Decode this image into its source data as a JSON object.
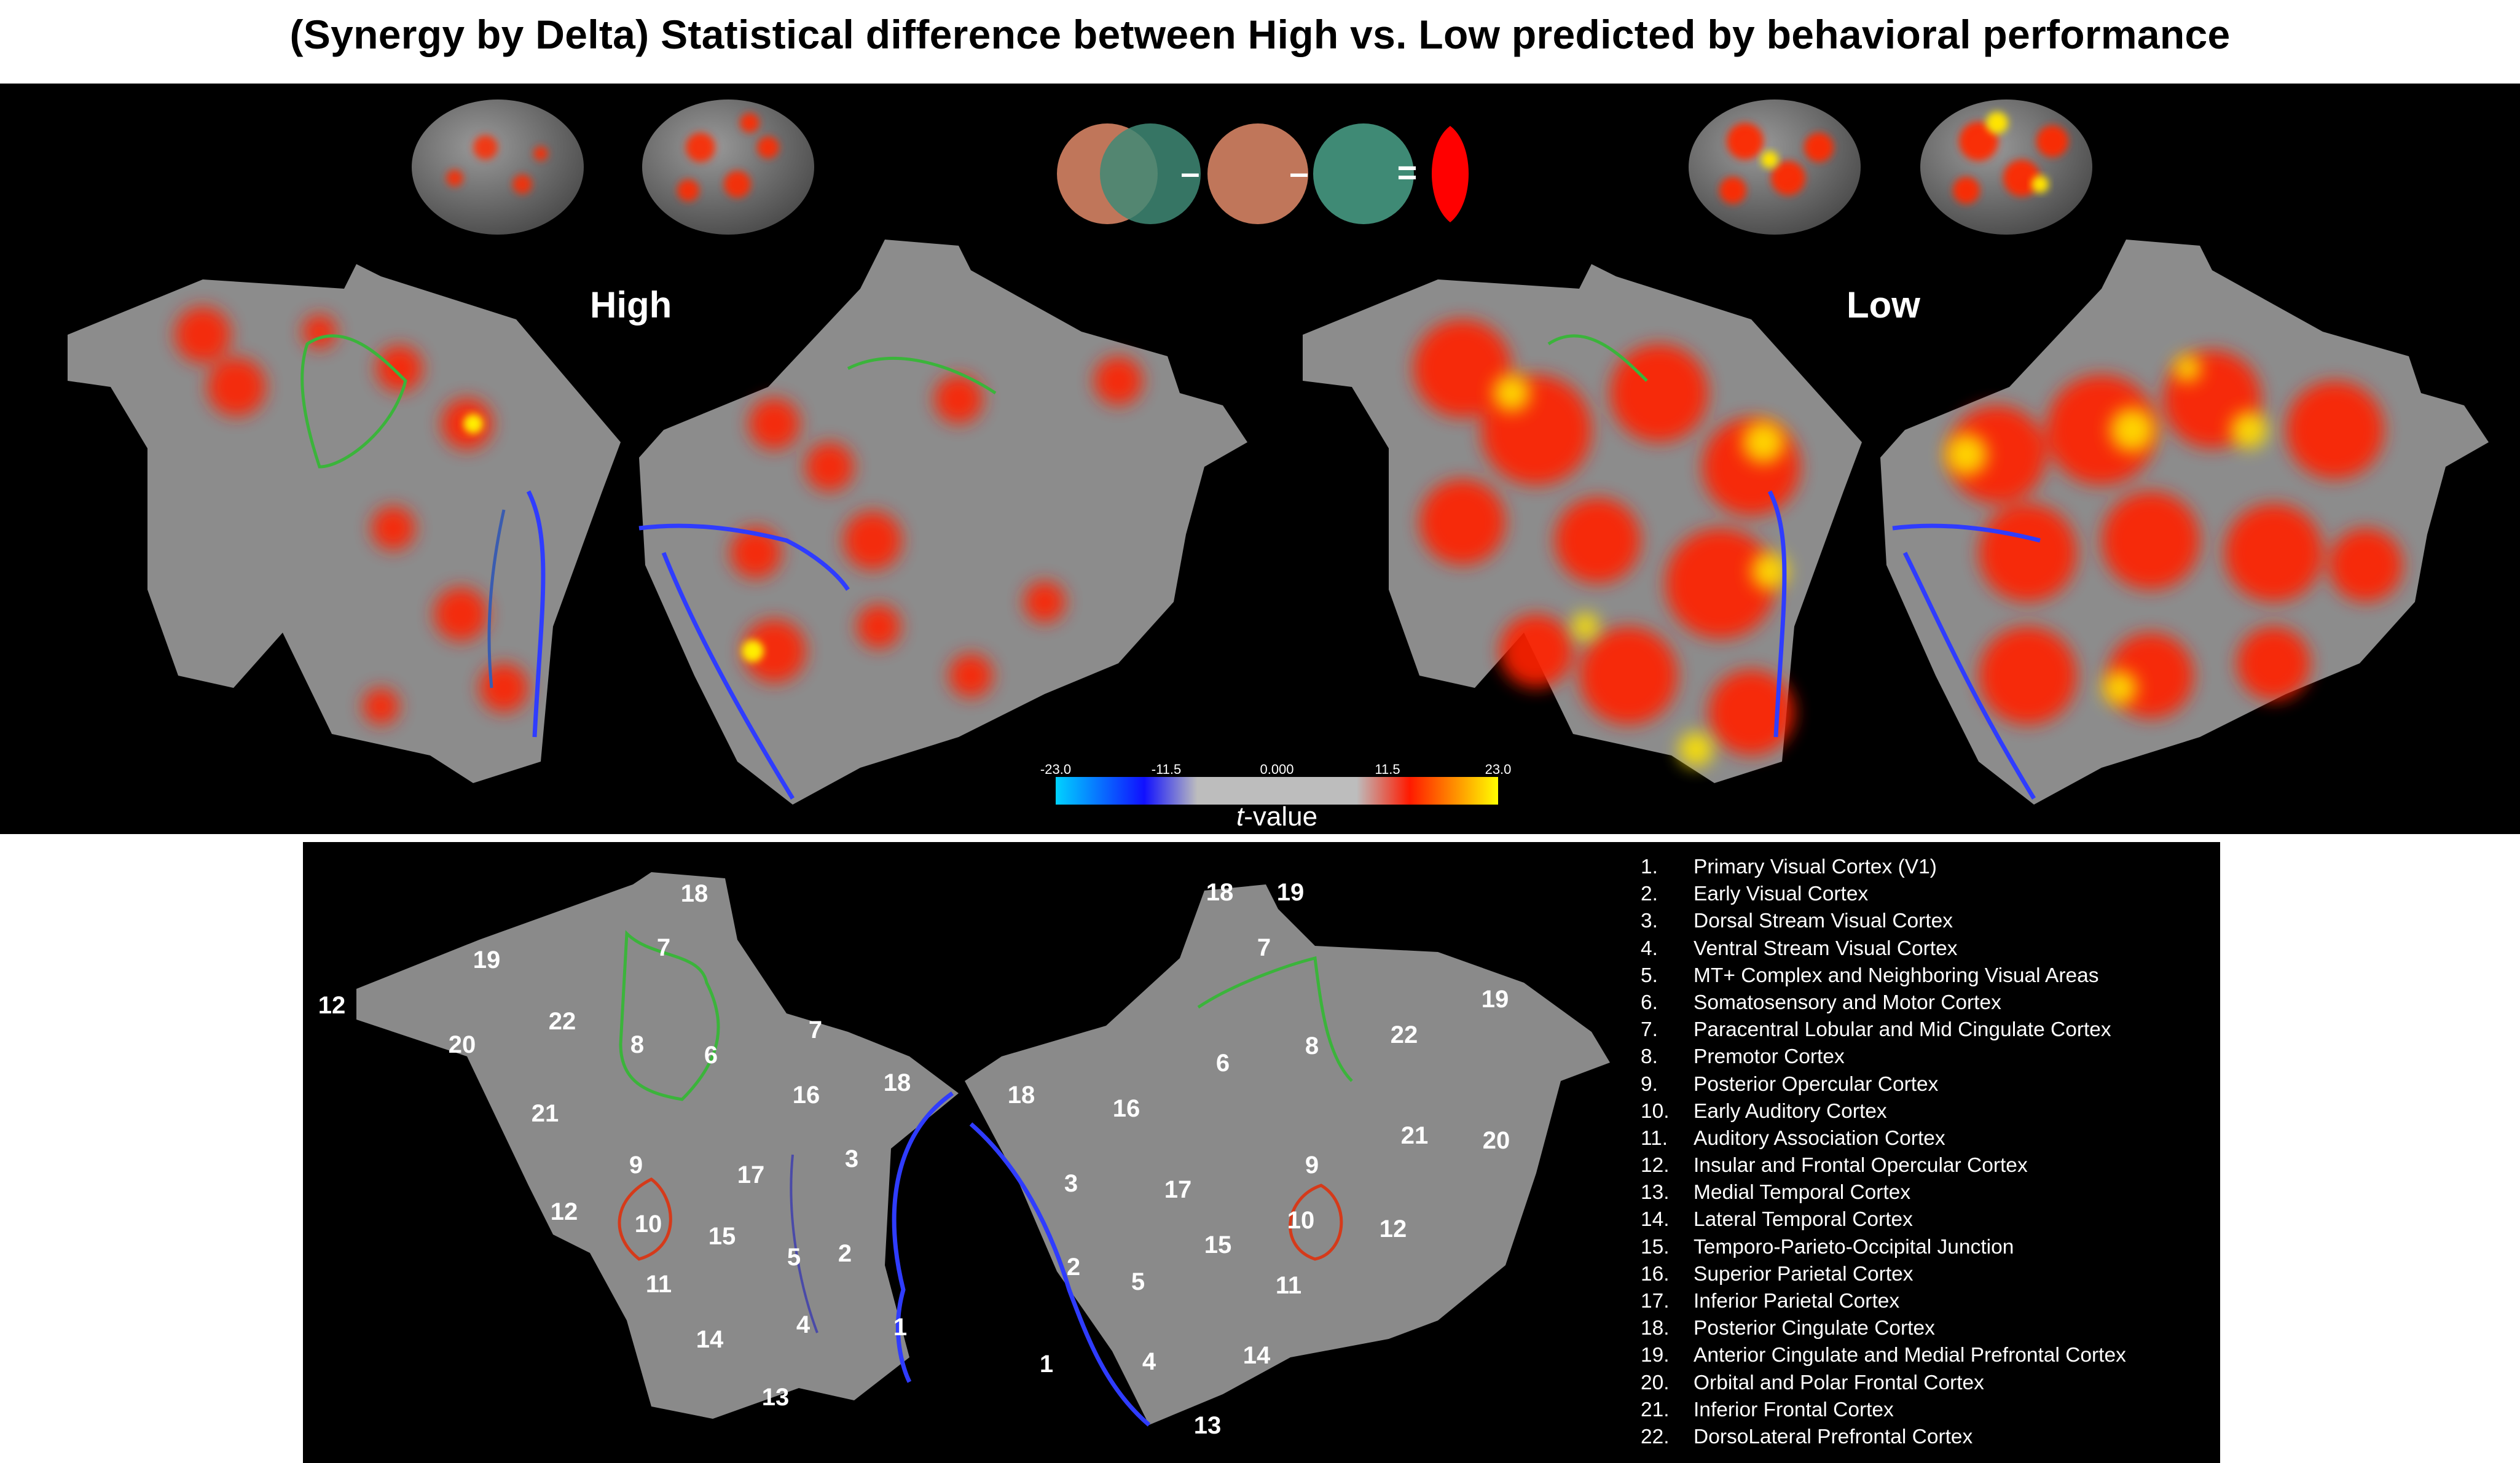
{
  "figure": {
    "title": "(Synergy by Delta) Statistical difference between High vs. Low predicted by behavioral performance",
    "group_labels": {
      "high": "High",
      "low": "Low"
    },
    "colorbar": {
      "ticks": [
        "-23.0",
        "-11.5",
        "0.000",
        "11.5",
        "23.0"
      ],
      "label_italic": "t",
      "label_rest": "-value",
      "colors": {
        "neg_max": "#00d2ff",
        "neg_mid": "#1010ff",
        "neutral": "#bdbdbd",
        "pos_mid": "#ff1a00",
        "pos_max": "#ffff00"
      }
    },
    "venn_colors": {
      "circle_a": "#c0765a",
      "circle_b": "#3f8a75",
      "result": "#ff0000"
    },
    "venn_operators": {
      "minus1": "–",
      "minus2": "–",
      "equals": "="
    }
  },
  "region_labels": {
    "left": [
      "18",
      "7",
      "19",
      "12",
      "22",
      "20",
      "8",
      "6",
      "7",
      "16",
      "18",
      "21",
      "9",
      "17",
      "3",
      "12",
      "10",
      "15",
      "5",
      "2",
      "11",
      "14",
      "4",
      "1",
      "13"
    ],
    "right": [
      "18",
      "19",
      "7",
      "6",
      "8",
      "22",
      "19",
      "18",
      "16",
      "21",
      "20",
      "3",
      "17",
      "9",
      "12",
      "10",
      "15",
      "2",
      "5",
      "11",
      "1",
      "4",
      "14",
      "13"
    ]
  },
  "legend": [
    {
      "num": "1.",
      "name": "Primary Visual Cortex (V1)"
    },
    {
      "num": "2.",
      "name": "Early Visual Cortex"
    },
    {
      "num": "3.",
      "name": "Dorsal Stream Visual Cortex"
    },
    {
      "num": "4.",
      "name": "Ventral Stream Visual Cortex"
    },
    {
      "num": "5.",
      "name": "MT+ Complex and Neighboring Visual Areas"
    },
    {
      "num": "6.",
      "name": "Somatosensory and Motor Cortex"
    },
    {
      "num": "7.",
      "name": "Paracentral Lobular and Mid Cingulate Cortex"
    },
    {
      "num": "8.",
      "name": "Premotor Cortex"
    },
    {
      "num": "9.",
      "name": "Posterior Opercular Cortex"
    },
    {
      "num": "10.",
      "name": "Early Auditory Cortex"
    },
    {
      "num": "11.",
      "name": "Auditory Association Cortex"
    },
    {
      "num": "12.",
      "name": "Insular and Frontal Opercular Cortex"
    },
    {
      "num": "13.",
      "name": "Medial Temporal Cortex"
    },
    {
      "num": "14.",
      "name": "Lateral Temporal Cortex"
    },
    {
      "num": "15.",
      "name": "Temporo-Parieto-Occipital Junction"
    },
    {
      "num": "16.",
      "name": "Superior Parietal  Cortex"
    },
    {
      "num": "17.",
      "name": "Inferior Parietal Cortex"
    },
    {
      "num": "18.",
      "name": "Posterior Cingulate Cortex"
    },
    {
      "num": "19.",
      "name": "Anterior Cingulate and Medial Prefrontal Cortex"
    },
    {
      "num": "20.",
      "name": "Orbital and Polar Frontal Cortex"
    },
    {
      "num": "21.",
      "name": "Inferior Frontal Cortex"
    },
    {
      "num": "22.",
      "name": "DorsoLateral Prefrontal Cortex"
    }
  ]
}
